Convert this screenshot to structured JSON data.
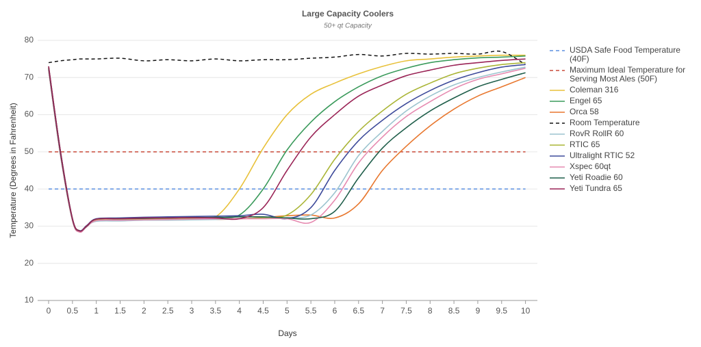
{
  "chart_data": {
    "type": "line",
    "title": "Large Capacity Coolers",
    "subtitle": "50+ qt Capacity",
    "x_label": "Days",
    "y_label": "Temperature (Degrees in Fahrenheit)",
    "x": [
      0,
      0.25,
      0.5,
      0.65,
      0.8,
      1,
      1.5,
      2,
      2.5,
      3,
      3.5,
      4,
      4.5,
      5,
      5.5,
      6,
      6.5,
      7,
      7.5,
      8,
      8.5,
      9,
      9.5,
      10
    ],
    "xlim": [
      -0.23,
      10.25
    ],
    "xticks": [
      0,
      0.5,
      1,
      1.5,
      2,
      2.5,
      3,
      3.5,
      4,
      4.5,
      5,
      5.5,
      6,
      6.5,
      7,
      7.5,
      8,
      8.5,
      9,
      9.5,
      10
    ],
    "ylim": [
      10,
      80
    ],
    "yticks": [
      10,
      20,
      30,
      40,
      50,
      60,
      70,
      80
    ],
    "grid": true,
    "legend": "right",
    "series": [
      {
        "name": "USDA Safe Food Temperature (40F)",
        "color": "#5b8fe0",
        "dash": true,
        "values": [
          40,
          40,
          40,
          40,
          40,
          40,
          40,
          40,
          40,
          40,
          40,
          40,
          40,
          40,
          40,
          40,
          40,
          40,
          40,
          40,
          40,
          40,
          40,
          40
        ]
      },
      {
        "name": "Maximum Ideal Temperature for Serving Most Ales (50F)",
        "color": "#c94a3a",
        "dash": true,
        "values": [
          50,
          50,
          50,
          50,
          50,
          50,
          50,
          50,
          50,
          50,
          50,
          50,
          50,
          50,
          50,
          50,
          50,
          50,
          50,
          50,
          50,
          50,
          50,
          50
        ]
      },
      {
        "name": "Coleman 316",
        "color": "#e8c13a",
        "values": [
          73,
          50,
          32,
          28.8,
          30,
          31.8,
          32,
          32,
          32,
          32.2,
          32.5,
          40,
          51,
          60,
          65.5,
          68.5,
          71,
          73,
          74.5,
          75,
          75.5,
          75.8,
          76,
          76
        ]
      },
      {
        "name": "Engel 65",
        "color": "#3a9a5b",
        "values": [
          72.5,
          50,
          32,
          28.6,
          30,
          31.8,
          32,
          32,
          32,
          32.3,
          32.4,
          33,
          40,
          50.5,
          58,
          63.5,
          67.5,
          70.5,
          72.5,
          74,
          74.8,
          75.3,
          75.5,
          75.8
        ]
      },
      {
        "name": "Orca 58",
        "color": "#e8772e",
        "values": [
          72,
          49,
          31.5,
          28.5,
          30,
          31.5,
          31.6,
          31.7,
          31.8,
          31.8,
          31.8,
          32,
          32.3,
          32.8,
          33,
          32.2,
          36,
          45,
          51.5,
          57,
          61.5,
          65,
          67.5,
          70
        ]
      },
      {
        "name": "Room Temperature",
        "color": "#111111",
        "dash": true,
        "values": [
          74,
          74.5,
          74.8,
          75,
          75,
          75,
          75.2,
          74.5,
          74.8,
          74.5,
          75,
          74.5,
          74.8,
          74.8,
          75.2,
          75.5,
          76.2,
          75.8,
          76.5,
          76.3,
          76.5,
          76.3,
          77,
          73.5
        ]
      },
      {
        "name": "RovR RollR 60",
        "color": "#9cc4cf",
        "values": [
          72,
          49,
          31.5,
          28.5,
          30,
          31.3,
          31.4,
          31.6,
          31.6,
          31.7,
          31.8,
          32,
          32.2,
          32.3,
          33,
          39,
          49,
          55.5,
          61,
          65,
          68,
          70,
          71.5,
          72.8
        ]
      },
      {
        "name": "RTIC 65",
        "color": "#aab536",
        "values": [
          72.5,
          49.5,
          31.8,
          28.6,
          30,
          31.8,
          31.9,
          32,
          32,
          32,
          32,
          32,
          32.3,
          33,
          38.5,
          48,
          55.5,
          61,
          65.5,
          68.5,
          71,
          72.5,
          73.5,
          74
        ]
      },
      {
        "name": "Ultralight RTIC 52",
        "color": "#3d4a9a",
        "values": [
          73,
          50,
          32,
          28.8,
          30.2,
          32,
          32.2,
          32.4,
          32.5,
          32.6,
          32.7,
          32.8,
          33.2,
          32,
          35,
          45,
          53,
          58.5,
          63,
          66.5,
          69.3,
          71.3,
          72.8,
          73.5
        ]
      },
      {
        "name": "Xspec 60qt",
        "color": "#e68ab0",
        "values": [
          72,
          49,
          31.5,
          28.4,
          29.8,
          31.5,
          31.6,
          31.7,
          31.8,
          31.9,
          32,
          32,
          32,
          32,
          31,
          37,
          47,
          54,
          59.5,
          63.5,
          67,
          69.5,
          71,
          72.5
        ]
      },
      {
        "name": "Yeti Roadie 60",
        "color": "#1f5e4a",
        "values": [
          72.5,
          49.5,
          31.8,
          28.7,
          30,
          31.9,
          32,
          32.1,
          32.2,
          32.3,
          32.3,
          32.5,
          32.5,
          32.2,
          32,
          34,
          43,
          51,
          56.5,
          61,
          64.5,
          67.5,
          69.5,
          71.3
        ]
      },
      {
        "name": "Yeti Tundra 65",
        "color": "#9a2456",
        "values": [
          73,
          50,
          32,
          28.7,
          30.1,
          31.9,
          32,
          32.2,
          32.2,
          32.3,
          32.2,
          32,
          35,
          45,
          54,
          60,
          65,
          68,
          70.5,
          72,
          73.3,
          74,
          74.6,
          75
        ]
      }
    ]
  }
}
